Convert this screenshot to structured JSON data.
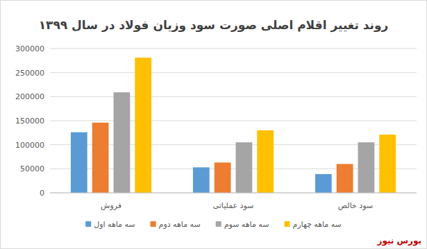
{
  "chart_data": {
    "type": "bar",
    "title": "روند تغییر اقلام اصلی صورت سود وزیان فولاد در سال ۱۳۹۹",
    "categories": [
      "فروش",
      "سود عملیاتی",
      "سود خالص"
    ],
    "series": [
      {
        "name": "سه ماهه اول",
        "color": "#5b9bd5",
        "values": [
          126000,
          53000,
          39000
        ]
      },
      {
        "name": "سه ماهه دوم",
        "color": "#ed7d31",
        "values": [
          146000,
          63000,
          60000
        ]
      },
      {
        "name": "سه ماهه سوم",
        "color": "#a5a5a5",
        "values": [
          209000,
          105000,
          105000
        ]
      },
      {
        "name": "سه ماهه چهارم",
        "color": "#ffc000",
        "values": [
          281000,
          130000,
          121000
        ]
      }
    ],
    "ylim": [
      0,
      300000
    ],
    "yticks": [
      0,
      50000,
      100000,
      150000,
      200000,
      250000,
      300000
    ],
    "grid": true,
    "legend": "bottom",
    "annotations": [
      "بورس نیوز"
    ]
  }
}
